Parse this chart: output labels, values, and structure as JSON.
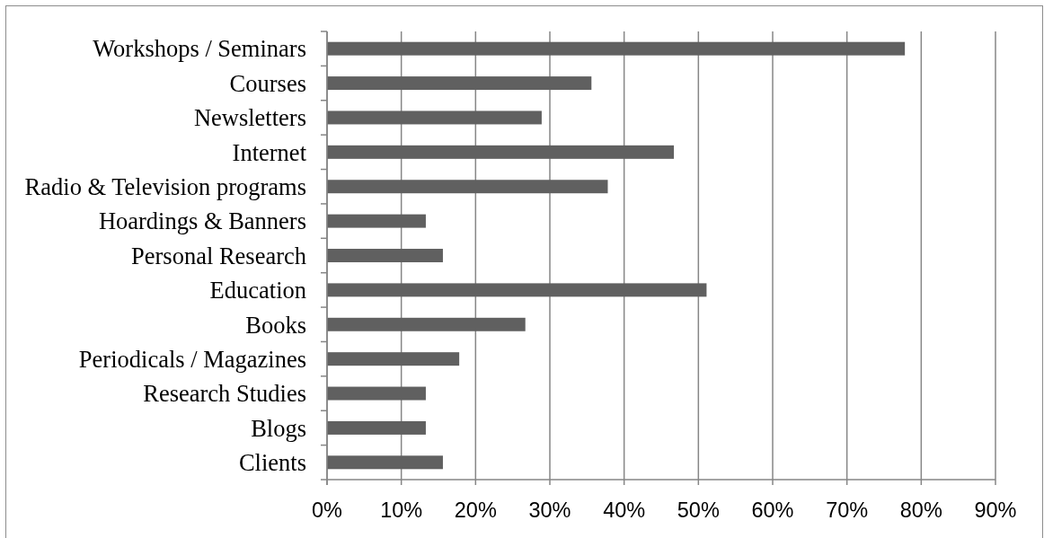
{
  "chart_data": {
    "type": "bar",
    "orientation": "horizontal",
    "categories": [
      "Workshops / Seminars",
      "Courses",
      "Newsletters",
      "Internet",
      "Radio & Television programs",
      "Hoardings & Banners",
      "Personal Research",
      "Education",
      "Books",
      "Periodicals / Magazines",
      "Research Studies",
      "Blogs",
      "Clients"
    ],
    "values": [
      77.8,
      35.6,
      28.9,
      46.7,
      37.8,
      13.3,
      15.6,
      51.1,
      26.7,
      17.8,
      13.3,
      13.3,
      15.6
    ],
    "color": "#606060",
    "xlim": [
      0,
      90
    ],
    "xticks": [
      {
        "value": 0,
        "label": "0%"
      },
      {
        "value": 10,
        "label": "10%"
      },
      {
        "value": 20,
        "label": "20%"
      },
      {
        "value": 30,
        "label": "30%"
      },
      {
        "value": 40,
        "label": "40%"
      },
      {
        "value": 50,
        "label": "50%"
      },
      {
        "value": 60,
        "label": "60%"
      },
      {
        "value": 70,
        "label": "70%"
      },
      {
        "value": 80,
        "label": "80%"
      },
      {
        "value": 90,
        "label": "90%"
      }
    ],
    "grid": "x"
  }
}
